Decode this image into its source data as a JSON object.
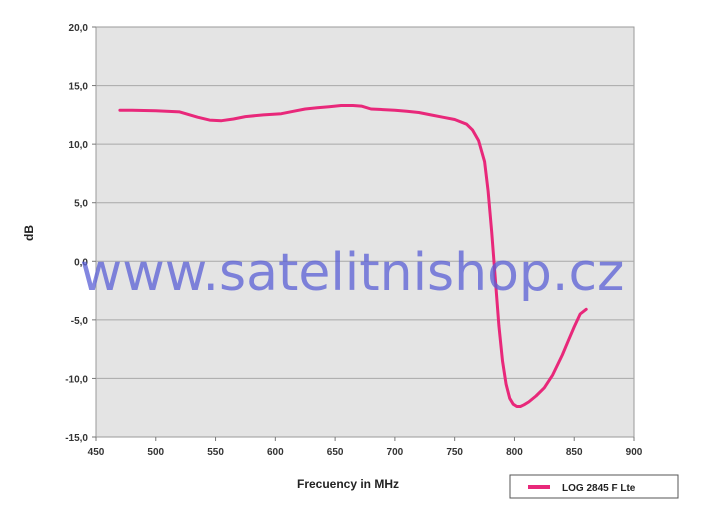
{
  "chart_data": {
    "type": "line",
    "title": "",
    "xlabel": "Frecuency in MHz",
    "ylabel": "dB",
    "xlim": [
      450,
      900
    ],
    "ylim": [
      -15,
      20
    ],
    "x_ticks": [
      "450",
      "500",
      "550",
      "600",
      "650",
      "700",
      "750",
      "800",
      "850",
      "900"
    ],
    "y_ticks": [
      "20,0",
      "15,0",
      "10,0",
      "5,0",
      "0,0",
      "-5,0",
      "-10,0",
      "-15,0"
    ],
    "grid": "horizontal",
    "legend_position": "bottom-right",
    "series": [
      {
        "name": "LOG 2845 F Lte",
        "color": "#e8287a",
        "x": [
          470,
          480,
          500,
          520,
          525,
          535,
          545,
          555,
          565,
          575,
          590,
          605,
          615,
          625,
          635,
          645,
          655,
          665,
          672,
          680,
          690,
          700,
          710,
          720,
          730,
          740,
          750,
          760,
          765,
          770,
          775,
          778,
          781,
          784,
          787,
          790,
          793,
          796,
          799,
          802,
          805,
          808,
          812,
          818,
          825,
          832,
          840,
          845,
          850,
          855,
          860
        ],
        "values": [
          12.9,
          12.9,
          12.85,
          12.75,
          12.6,
          12.3,
          12.05,
          12.0,
          12.15,
          12.35,
          12.5,
          12.6,
          12.8,
          13.0,
          13.1,
          13.2,
          13.3,
          13.3,
          13.25,
          13.0,
          12.95,
          12.9,
          12.8,
          12.7,
          12.5,
          12.3,
          12.1,
          11.7,
          11.2,
          10.3,
          8.5,
          6.0,
          2.5,
          -1.5,
          -5.5,
          -8.5,
          -10.5,
          -11.7,
          -12.2,
          -12.4,
          -12.4,
          -12.25,
          -12.0,
          -11.5,
          -10.8,
          -9.7,
          -8.0,
          -6.8,
          -5.6,
          -4.5,
          -4.1
        ]
      }
    ],
    "watermark": "www.satelitnishop.cz"
  }
}
